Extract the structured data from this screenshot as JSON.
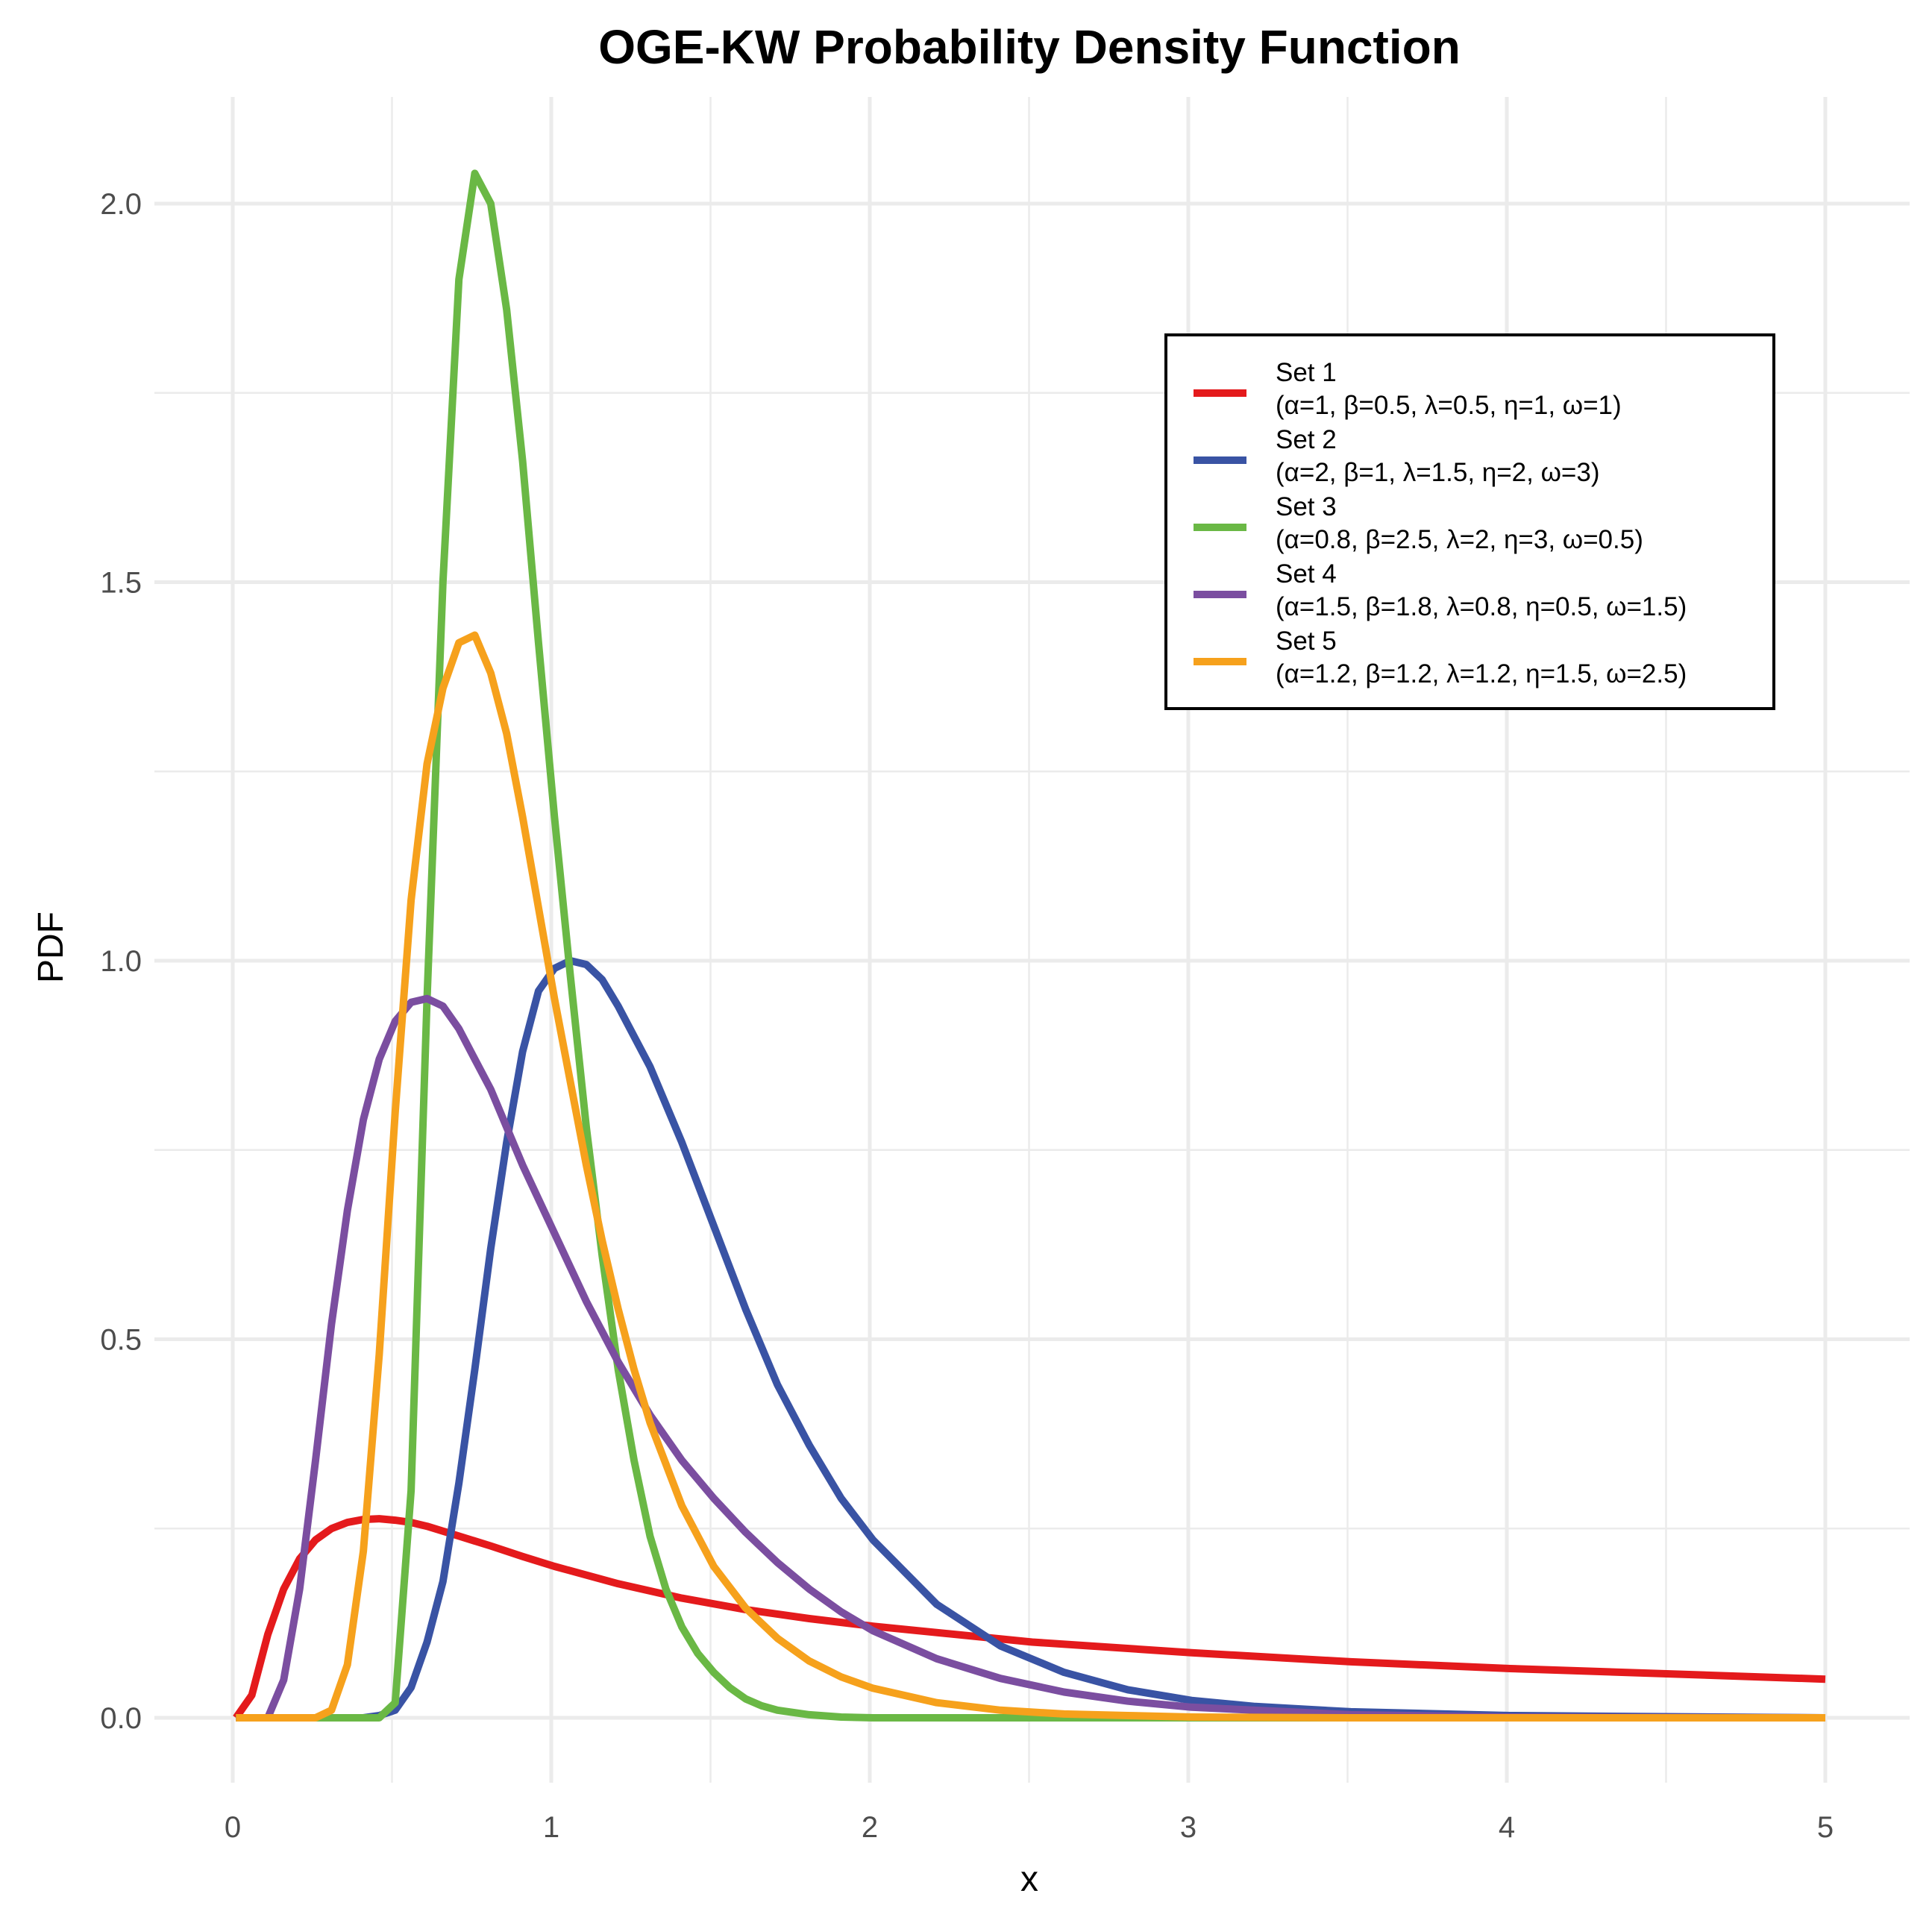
{
  "chart_data": {
    "type": "line",
    "title": "OGE-KW Probability Density Function",
    "xlabel": "x",
    "ylabel": "PDF",
    "xlim": [
      -0.25,
      5.25
    ],
    "ylim": [
      -0.08,
      2.13
    ],
    "x_ticks": [
      0,
      1,
      2,
      3,
      4,
      5
    ],
    "x_tick_labels": [
      "0",
      "1",
      "2",
      "3",
      "4",
      "5"
    ],
    "y_ticks": [
      0.0,
      0.5,
      1.0,
      1.5,
      2.0
    ],
    "y_tick_labels": [
      "0.0",
      "0.5",
      "1.0",
      "1.5",
      "2.0"
    ],
    "grid": true,
    "legend_position": "top-right",
    "series": [
      {
        "name": "Set 1",
        "params": "(α=1, β=0.5, λ=0.5, η=1, ω=1)",
        "color": "#e41a1c",
        "x": [
          0.01,
          0.06,
          0.11,
          0.16,
          0.21,
          0.26,
          0.31,
          0.36,
          0.41,
          0.46,
          0.51,
          0.56,
          0.61,
          0.71,
          0.81,
          0.91,
          1.01,
          1.21,
          1.41,
          1.61,
          1.81,
          2.01,
          2.51,
          3.01,
          3.51,
          4.01,
          4.51,
          5.0
        ],
        "y": [
          0.0,
          0.03,
          0.11,
          0.17,
          0.21,
          0.235,
          0.25,
          0.258,
          0.262,
          0.263,
          0.261,
          0.258,
          0.253,
          0.24,
          0.227,
          0.213,
          0.2,
          0.177,
          0.158,
          0.143,
          0.131,
          0.121,
          0.1,
          0.086,
          0.074,
          0.065,
          0.058,
          0.051
        ]
      },
      {
        "name": "Set 2",
        "params": "(α=2, β=1, λ=1.5, η=2, ω=3)",
        "color": "#3953a4",
        "x": [
          0.01,
          0.41,
          0.46,
          0.51,
          0.56,
          0.61,
          0.66,
          0.71,
          0.76,
          0.81,
          0.86,
          0.91,
          0.96,
          1.01,
          1.06,
          1.11,
          1.16,
          1.21,
          1.31,
          1.41,
          1.51,
          1.61,
          1.71,
          1.81,
          1.91,
          2.01,
          2.21,
          2.41,
          2.61,
          2.81,
          3.01,
          3.21,
          3.51,
          4.01,
          5.0
        ],
        "y": [
          0.0,
          0.0,
          0.003,
          0.01,
          0.04,
          0.1,
          0.18,
          0.31,
          0.46,
          0.62,
          0.76,
          0.88,
          0.96,
          0.99,
          1.0,
          0.995,
          0.975,
          0.94,
          0.86,
          0.76,
          0.65,
          0.54,
          0.44,
          0.36,
          0.29,
          0.235,
          0.15,
          0.095,
          0.06,
          0.037,
          0.023,
          0.015,
          0.008,
          0.003,
          0.0
        ]
      },
      {
        "name": "Set 3",
        "params": "(α=0.8, β=2.5, λ=2, η=3, ω=0.5)",
        "color": "#6ab845",
        "x": [
          0.01,
          0.46,
          0.51,
          0.56,
          0.61,
          0.66,
          0.71,
          0.76,
          0.81,
          0.86,
          0.91,
          0.96,
          1.01,
          1.06,
          1.11,
          1.16,
          1.21,
          1.26,
          1.31,
          1.36,
          1.41,
          1.46,
          1.51,
          1.56,
          1.61,
          1.66,
          1.71,
          1.81,
          1.91,
          2.01,
          5.0
        ],
        "y": [
          0.0,
          0.0,
          0.02,
          0.3,
          0.95,
          1.5,
          1.9,
          2.04,
          2.0,
          1.86,
          1.66,
          1.42,
          1.19,
          0.98,
          0.78,
          0.61,
          0.46,
          0.34,
          0.24,
          0.17,
          0.12,
          0.085,
          0.06,
          0.04,
          0.025,
          0.016,
          0.01,
          0.004,
          0.001,
          0.0,
          0.0
        ]
      },
      {
        "name": "Set 4",
        "params": "(α=1.5, β=1.8, λ=0.8, η=0.5, ω=1.5)",
        "color": "#7b4ea0",
        "x": [
          0.01,
          0.11,
          0.16,
          0.21,
          0.26,
          0.31,
          0.36,
          0.41,
          0.46,
          0.51,
          0.56,
          0.61,
          0.66,
          0.71,
          0.76,
          0.81,
          0.91,
          1.01,
          1.11,
          1.21,
          1.31,
          1.41,
          1.51,
          1.61,
          1.71,
          1.81,
          1.91,
          2.01,
          2.21,
          2.41,
          2.61,
          2.81,
          3.01,
          3.51,
          4.01,
          5.0
        ],
        "y": [
          0.0,
          0.0,
          0.05,
          0.17,
          0.34,
          0.52,
          0.67,
          0.79,
          0.87,
          0.92,
          0.945,
          0.95,
          0.94,
          0.91,
          0.87,
          0.83,
          0.73,
          0.64,
          0.55,
          0.47,
          0.4,
          0.34,
          0.29,
          0.245,
          0.205,
          0.17,
          0.14,
          0.115,
          0.078,
          0.052,
          0.034,
          0.022,
          0.014,
          0.004,
          0.001,
          0.0
        ]
      },
      {
        "name": "Set 5",
        "params": "(α=1.2, β=1.2, λ=1.2, η=1.5, ω=2.5)",
        "color": "#f6a11c",
        "x": [
          0.01,
          0.26,
          0.31,
          0.36,
          0.41,
          0.46,
          0.51,
          0.56,
          0.61,
          0.66,
          0.71,
          0.76,
          0.81,
          0.86,
          0.91,
          0.96,
          1.01,
          1.06,
          1.11,
          1.16,
          1.21,
          1.26,
          1.31,
          1.41,
          1.51,
          1.61,
          1.71,
          1.81,
          1.91,
          2.01,
          2.21,
          2.41,
          2.61,
          2.81,
          3.01,
          3.51,
          5.0
        ],
        "y": [
          0.0,
          0.0,
          0.01,
          0.07,
          0.22,
          0.48,
          0.8,
          1.08,
          1.26,
          1.36,
          1.42,
          1.43,
          1.38,
          1.3,
          1.19,
          1.07,
          0.95,
          0.84,
          0.73,
          0.63,
          0.54,
          0.46,
          0.39,
          0.28,
          0.2,
          0.145,
          0.105,
          0.075,
          0.054,
          0.039,
          0.02,
          0.01,
          0.005,
          0.003,
          0.001,
          0.0,
          0.0
        ]
      }
    ]
  }
}
